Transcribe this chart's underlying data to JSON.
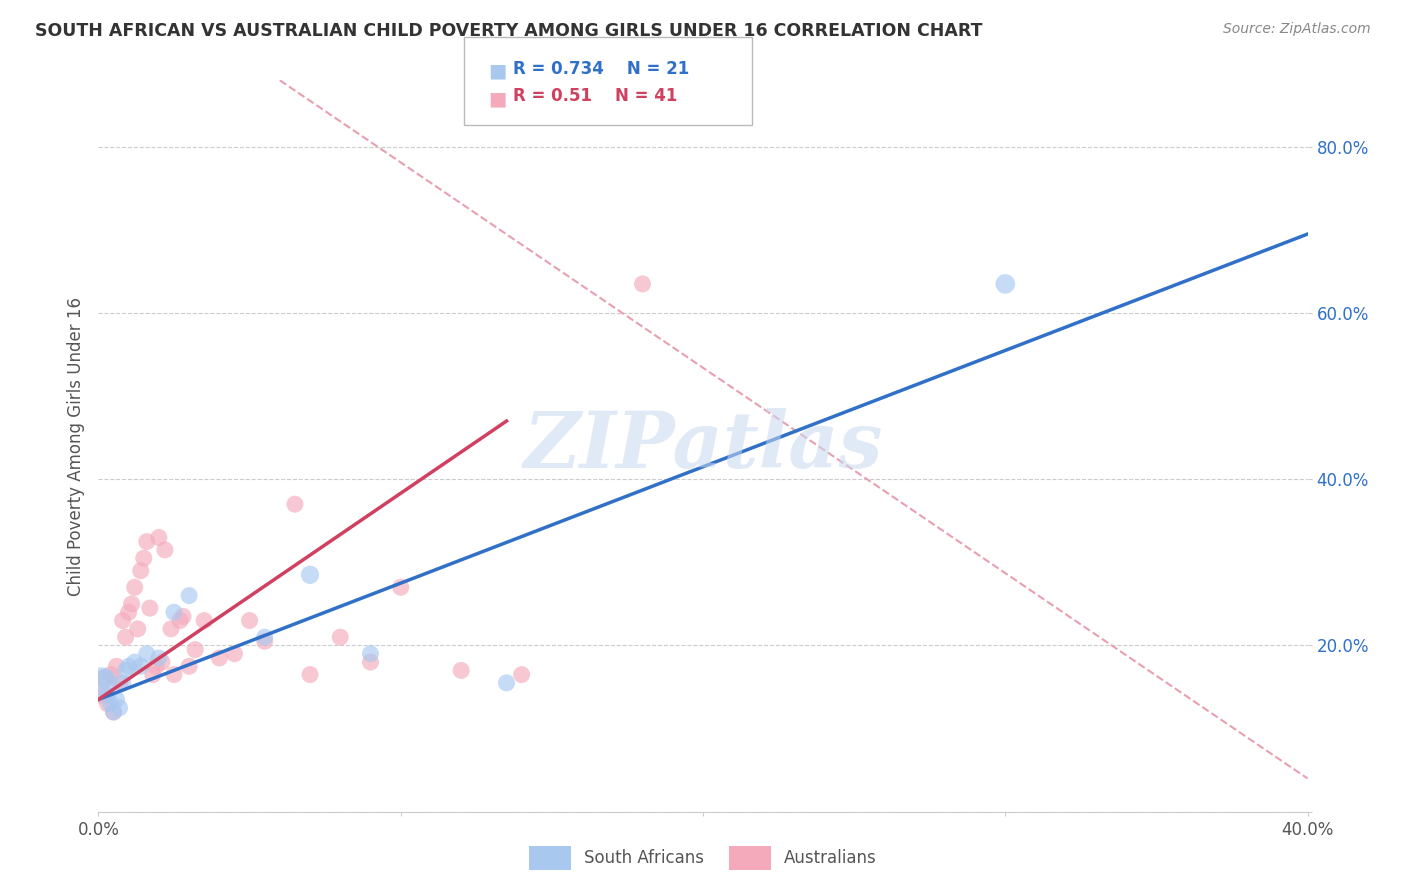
{
  "title": "SOUTH AFRICAN VS AUSTRALIAN CHILD POVERTY AMONG GIRLS UNDER 16 CORRELATION CHART",
  "source": "Source: ZipAtlas.com",
  "ylabel": "Child Poverty Among Girls Under 16",
  "xlim": [
    0.0,
    0.4
  ],
  "ylim": [
    0.0,
    0.88
  ],
  "r_blue": 0.734,
  "n_blue": 21,
  "r_pink": 0.51,
  "n_pink": 41,
  "blue_color": "#A8C8F0",
  "pink_color": "#F4AABB",
  "blue_line_color": "#3070C8",
  "pink_line_color": "#D04060",
  "dashed_line_color": "#E8A0B0",
  "watermark": "ZIPatlas",
  "watermark_color": "#C8D8F0",
  "legend_label_blue": "South Africans",
  "legend_label_pink": "Australians",
  "blue_scatter_x": [
    0.001,
    0.002,
    0.003,
    0.004,
    0.005,
    0.006,
    0.007,
    0.008,
    0.009,
    0.01,
    0.012,
    0.014,
    0.016,
    0.02,
    0.025,
    0.03,
    0.055,
    0.07,
    0.09,
    0.135,
    0.3
  ],
  "blue_scatter_y": [
    0.155,
    0.16,
    0.14,
    0.13,
    0.12,
    0.135,
    0.125,
    0.155,
    0.17,
    0.175,
    0.18,
    0.175,
    0.19,
    0.185,
    0.24,
    0.26,
    0.21,
    0.285,
    0.19,
    0.155,
    0.635
  ],
  "blue_scatter_sizes": [
    200,
    80,
    60,
    60,
    60,
    60,
    60,
    60,
    60,
    60,
    60,
    60,
    60,
    60,
    60,
    60,
    60,
    70,
    60,
    60,
    80
  ],
  "pink_scatter_x": [
    0.001,
    0.002,
    0.003,
    0.004,
    0.005,
    0.006,
    0.007,
    0.008,
    0.009,
    0.01,
    0.011,
    0.012,
    0.013,
    0.014,
    0.015,
    0.016,
    0.017,
    0.018,
    0.019,
    0.02,
    0.021,
    0.022,
    0.024,
    0.025,
    0.027,
    0.028,
    0.03,
    0.032,
    0.035,
    0.04,
    0.045,
    0.05,
    0.055,
    0.065,
    0.07,
    0.08,
    0.09,
    0.1,
    0.12,
    0.14,
    0.18
  ],
  "pink_scatter_y": [
    0.14,
    0.16,
    0.13,
    0.165,
    0.12,
    0.175,
    0.155,
    0.23,
    0.21,
    0.24,
    0.25,
    0.27,
    0.22,
    0.29,
    0.305,
    0.325,
    0.245,
    0.165,
    0.175,
    0.33,
    0.18,
    0.315,
    0.22,
    0.165,
    0.23,
    0.235,
    0.175,
    0.195,
    0.23,
    0.185,
    0.19,
    0.23,
    0.205,
    0.37,
    0.165,
    0.21,
    0.18,
    0.27,
    0.17,
    0.165,
    0.635
  ],
  "pink_scatter_sizes": [
    60,
    60,
    60,
    60,
    60,
    60,
    60,
    60,
    60,
    60,
    60,
    60,
    60,
    60,
    60,
    60,
    60,
    60,
    60,
    60,
    60,
    60,
    60,
    60,
    60,
    60,
    60,
    60,
    60,
    60,
    60,
    60,
    60,
    60,
    60,
    60,
    60,
    60,
    60,
    60,
    60
  ],
  "blue_line_x": [
    0.0,
    0.4
  ],
  "blue_line_y": [
    0.135,
    0.695
  ],
  "pink_line_x": [
    0.0,
    0.135
  ],
  "pink_line_y": [
    0.135,
    0.47
  ],
  "dashed_line_x": [
    0.06,
    0.4
  ],
  "dashed_line_y": [
    0.88,
    0.04
  ]
}
